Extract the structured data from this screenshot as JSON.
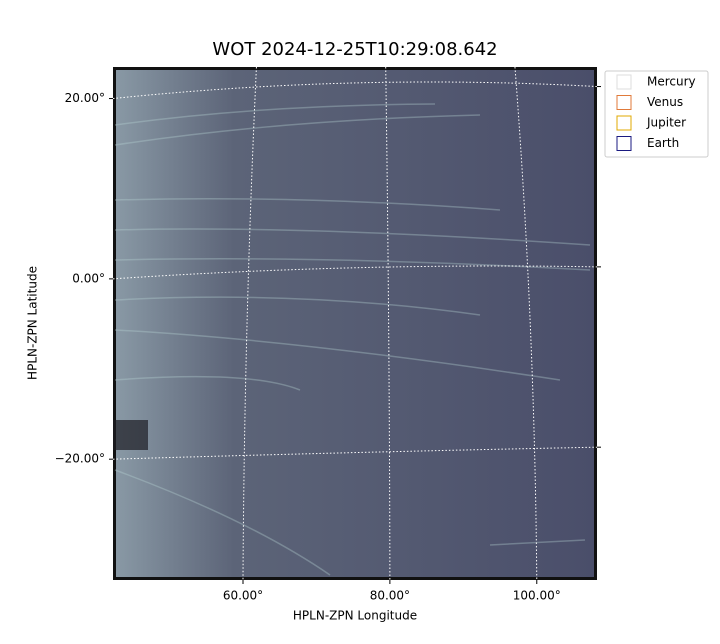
{
  "chart_data": {
    "type": "image",
    "title": "WOT 2024-12-25T10:29:08.642",
    "xlabel": "HPLN-ZPN Longitude",
    "ylabel": "HPLN-ZPN Latitude",
    "xlim": [
      42.3,
      108.2
    ],
    "ylim": [
      -33.4,
      23.5
    ],
    "xticks": [
      {
        "value": 60,
        "label": "60.00°"
      },
      {
        "value": 80,
        "label": "80.00°"
      },
      {
        "value": 100,
        "label": "100.00°"
      }
    ],
    "yticks": [
      {
        "value": -20,
        "label": "−20.00°"
      },
      {
        "value": 0,
        "label": "0.00°"
      },
      {
        "value": 20,
        "label": "20.00°"
      }
    ],
    "grid": true,
    "legend_position": "upper right",
    "legend": [
      {
        "name": "Mercury",
        "color": "#dddddd"
      },
      {
        "name": "Venus",
        "color": "#e07a3a"
      },
      {
        "name": "Jupiter",
        "color": "#e0a800"
      },
      {
        "name": "Earth",
        "color": "#1a1a80"
      }
    ]
  }
}
